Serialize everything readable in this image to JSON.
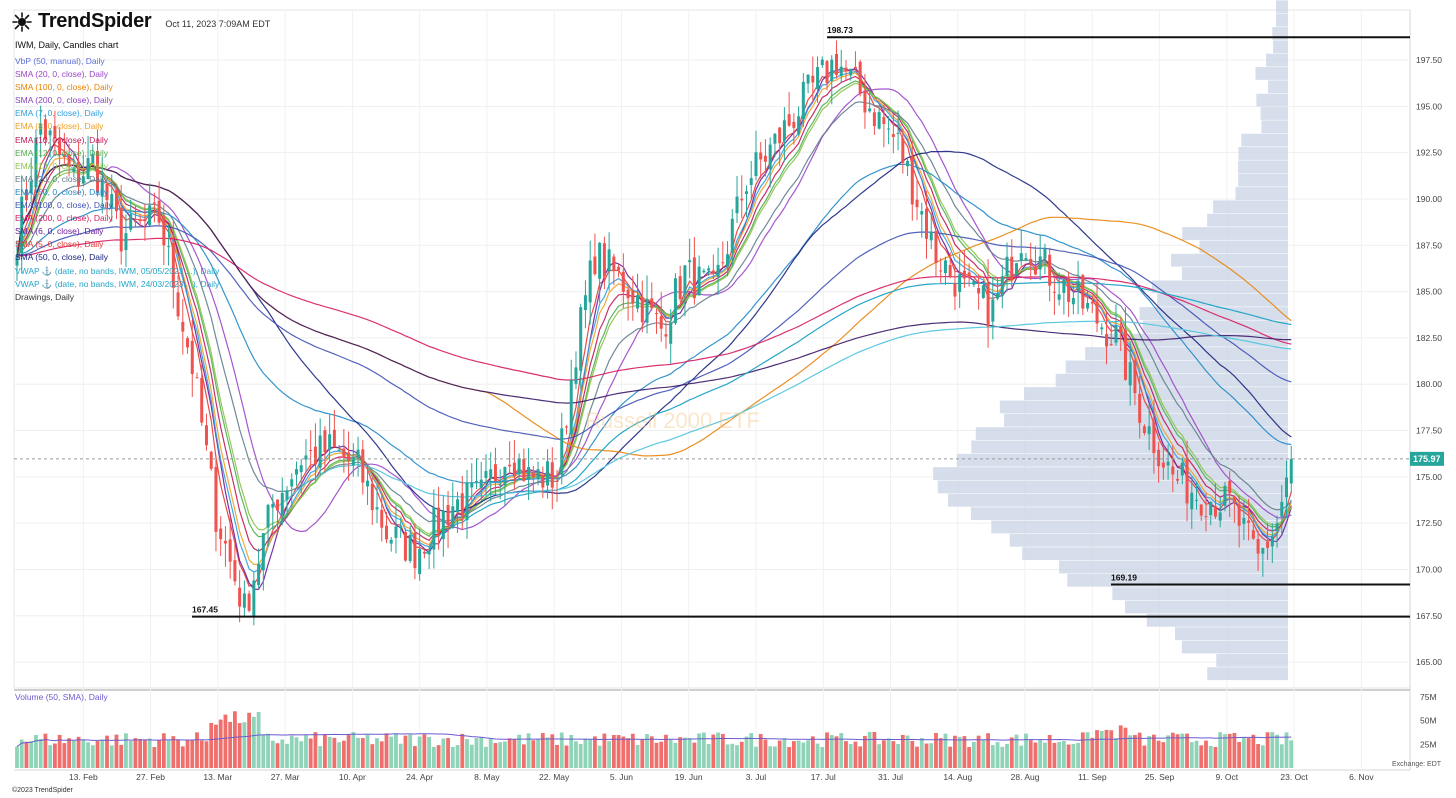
{
  "app": {
    "brand": "TrendSpider",
    "timestamp": "Oct 11, 2023 7:09AM EDT",
    "copyright": "©2023 TrendSpider"
  },
  "chart": {
    "title": "IWM, Daily, Candles chart",
    "watermark": "Russell 2000 ETF",
    "exchange_label": "Exchange: EDT",
    "last_price": "175.97",
    "legend": [
      {
        "label": "VbP (50, manual), Daily",
        "color": "#5b6fd8"
      },
      {
        "label": "SMA (20, 0, close), Daily",
        "color": "#9c45c8"
      },
      {
        "label": "SMA (100, 0, close), Daily",
        "color": "#e8840a"
      },
      {
        "label": "SMA (200, 0, close), Daily",
        "color": "#8a44b8"
      },
      {
        "label": "EMA (7, 0, close), Daily",
        "color": "#2e9ee0"
      },
      {
        "label": "EMA (8, 0, close), Daily",
        "color": "#f0a020"
      },
      {
        "label": "EMA (10, 0, close), Daily",
        "color": "#c0185a"
      },
      {
        "label": "EMA (12, 0, close), Daily",
        "color": "#4caf50"
      },
      {
        "label": "EMA (13, 0, close), Daily",
        "color": "#8bc34a"
      },
      {
        "label": "EMA (20, 0, close), Daily",
        "color": "#607d8b"
      },
      {
        "label": "EMA (50, 0, close), Daily",
        "color": "#1f88c8"
      },
      {
        "label": "EMA (100, 0, close), Daily",
        "color": "#3f51b5"
      },
      {
        "label": "EMA (200, 0, close), Daily",
        "color": "#d81b60"
      },
      {
        "label": "SMA (6, 0, close), Daily",
        "color": "#6a1b9a"
      },
      {
        "label": "SMA (5, 0, close), Daily",
        "color": "#e53935"
      },
      {
        "label": "SMA (50, 0, close), Daily",
        "color": "#1a237e"
      },
      {
        "label": "VWAP ⚓ (date, no bands, IWM, 05/05/2023 ...), Daily",
        "color": "#26a6c8"
      },
      {
        "label": "VWAP ⚓ (date, no bands, IWM, 24/03/2023 ...), Daily",
        "color": "#26a6c8"
      },
      {
        "label": "Drawings, Daily",
        "color": "#333333"
      }
    ],
    "levels": [
      {
        "label": "198.73",
        "value": 198.73
      },
      {
        "label": "169.19",
        "value": 169.19
      },
      {
        "label": "167.45",
        "value": 167.45
      }
    ],
    "volume_title": "Volume (50, SMA), Daily"
  },
  "chart_data": {
    "type": "candlestick",
    "ticker": "IWM",
    "y_ticks": [
      "197.50",
      "195.00",
      "192.50",
      "190.00",
      "187.50",
      "185.00",
      "182.50",
      "180.00",
      "177.50",
      "175.00",
      "172.50",
      "170.00",
      "167.50",
      "165.00"
    ],
    "ylim": [
      163.6,
      200.2
    ],
    "x_ticks": [
      "13. Feb",
      "27. Feb",
      "13. Mar",
      "27. Mar",
      "10. Apr",
      "24. Apr",
      "8. May",
      "22. May",
      "5. Jun",
      "19. Jun",
      "3. Jul",
      "17. Jul",
      "31. Jul",
      "14. Aug",
      "28. Aug",
      "11. Sep",
      "25. Sep",
      "9. Oct",
      "23. Oct",
      "6. Nov"
    ],
    "volume_ticks": [
      "75M",
      "50M",
      "25M"
    ],
    "close_anchors": [
      [
        0,
        188
      ],
      [
        5,
        194
      ],
      [
        12,
        191
      ],
      [
        16,
        192
      ],
      [
        22,
        188
      ],
      [
        30,
        189
      ],
      [
        37,
        181
      ],
      [
        42,
        173
      ],
      [
        48,
        167.8
      ],
      [
        54,
        173.5
      ],
      [
        60,
        176
      ],
      [
        66,
        176.5
      ],
      [
        72,
        175.5
      ],
      [
        78,
        172
      ],
      [
        84,
        171
      ],
      [
        92,
        173.5
      ],
      [
        98,
        174
      ],
      [
        104,
        176.5
      ],
      [
        108,
        175
      ],
      [
        114,
        175
      ],
      [
        118,
        182
      ],
      [
        122,
        187
      ],
      [
        130,
        185
      ],
      [
        136,
        183
      ],
      [
        141,
        186
      ],
      [
        147,
        185
      ],
      [
        154,
        191
      ],
      [
        160,
        193
      ],
      [
        168,
        196
      ],
      [
        173,
        197.5
      ],
      [
        180,
        195
      ],
      [
        186,
        193
      ],
      [
        194,
        187
      ],
      [
        200,
        185
      ],
      [
        206,
        184
      ],
      [
        212,
        188
      ],
      [
        218,
        186
      ],
      [
        226,
        184
      ],
      [
        232,
        182.5
      ],
      [
        238,
        178
      ],
      [
        244,
        175
      ],
      [
        250,
        174
      ],
      [
        256,
        173.5
      ],
      [
        262,
        170.5
      ],
      [
        266,
        172.5
      ],
      [
        269,
        175.97
      ]
    ]
  }
}
